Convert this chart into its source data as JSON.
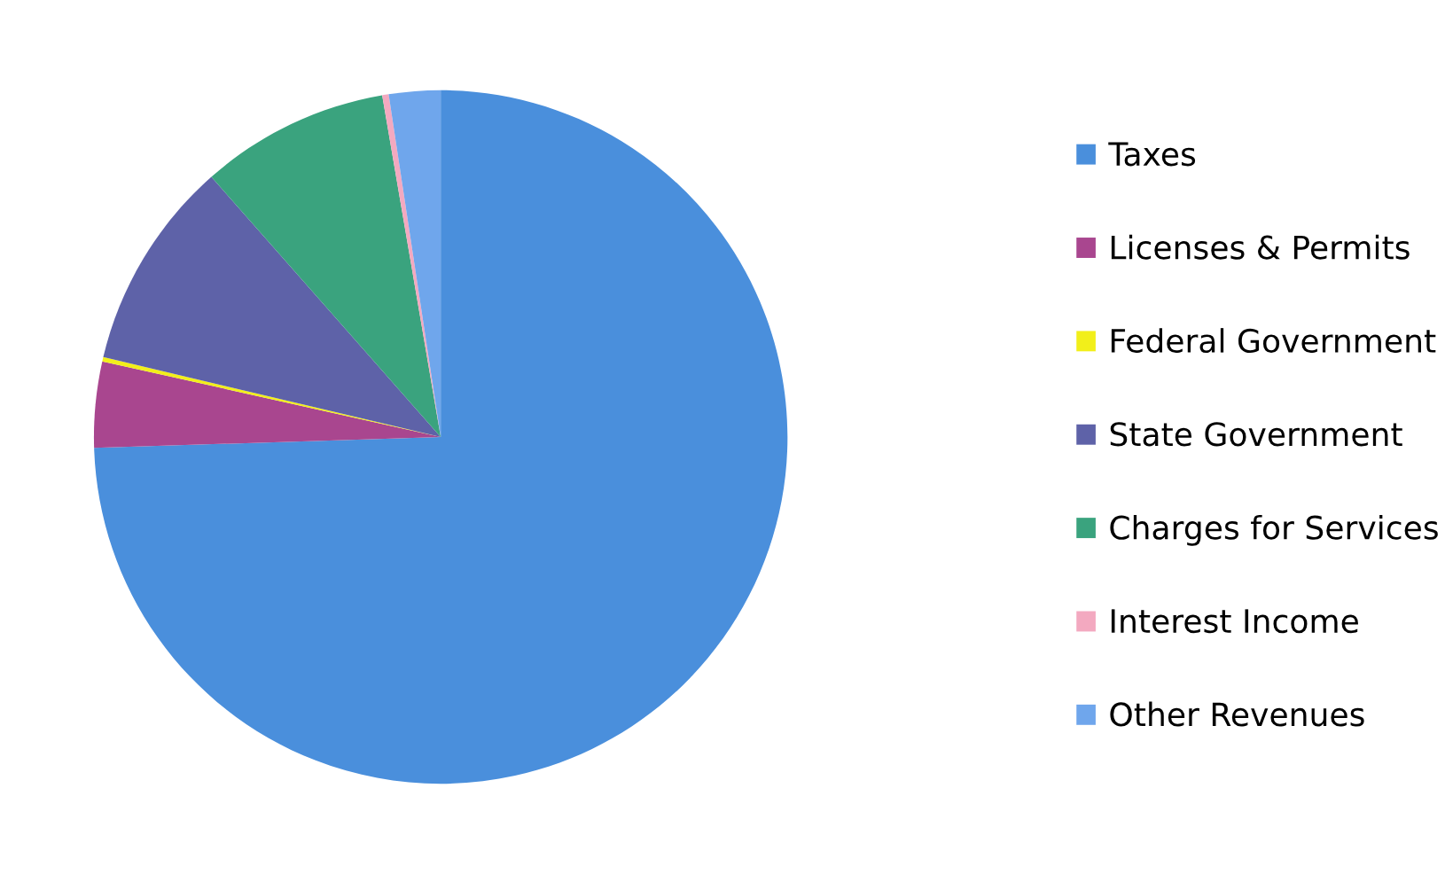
{
  "chart_data": {
    "type": "pie",
    "categories": [
      "Taxes",
      "Licenses & Permits",
      "Federal Government",
      "State Government",
      "Charges for Services",
      "Interest Income",
      "Other Revenues"
    ],
    "values": [
      74.5,
      4.0,
      0.2,
      9.8,
      8.8,
      0.3,
      2.4
    ],
    "colors": [
      "#4a8fdc",
      "#a9468f",
      "#f2ef1a",
      "#5e62a8",
      "#3aa37e",
      "#f3a9c0",
      "#6fa6ec"
    ],
    "legend": "right"
  }
}
